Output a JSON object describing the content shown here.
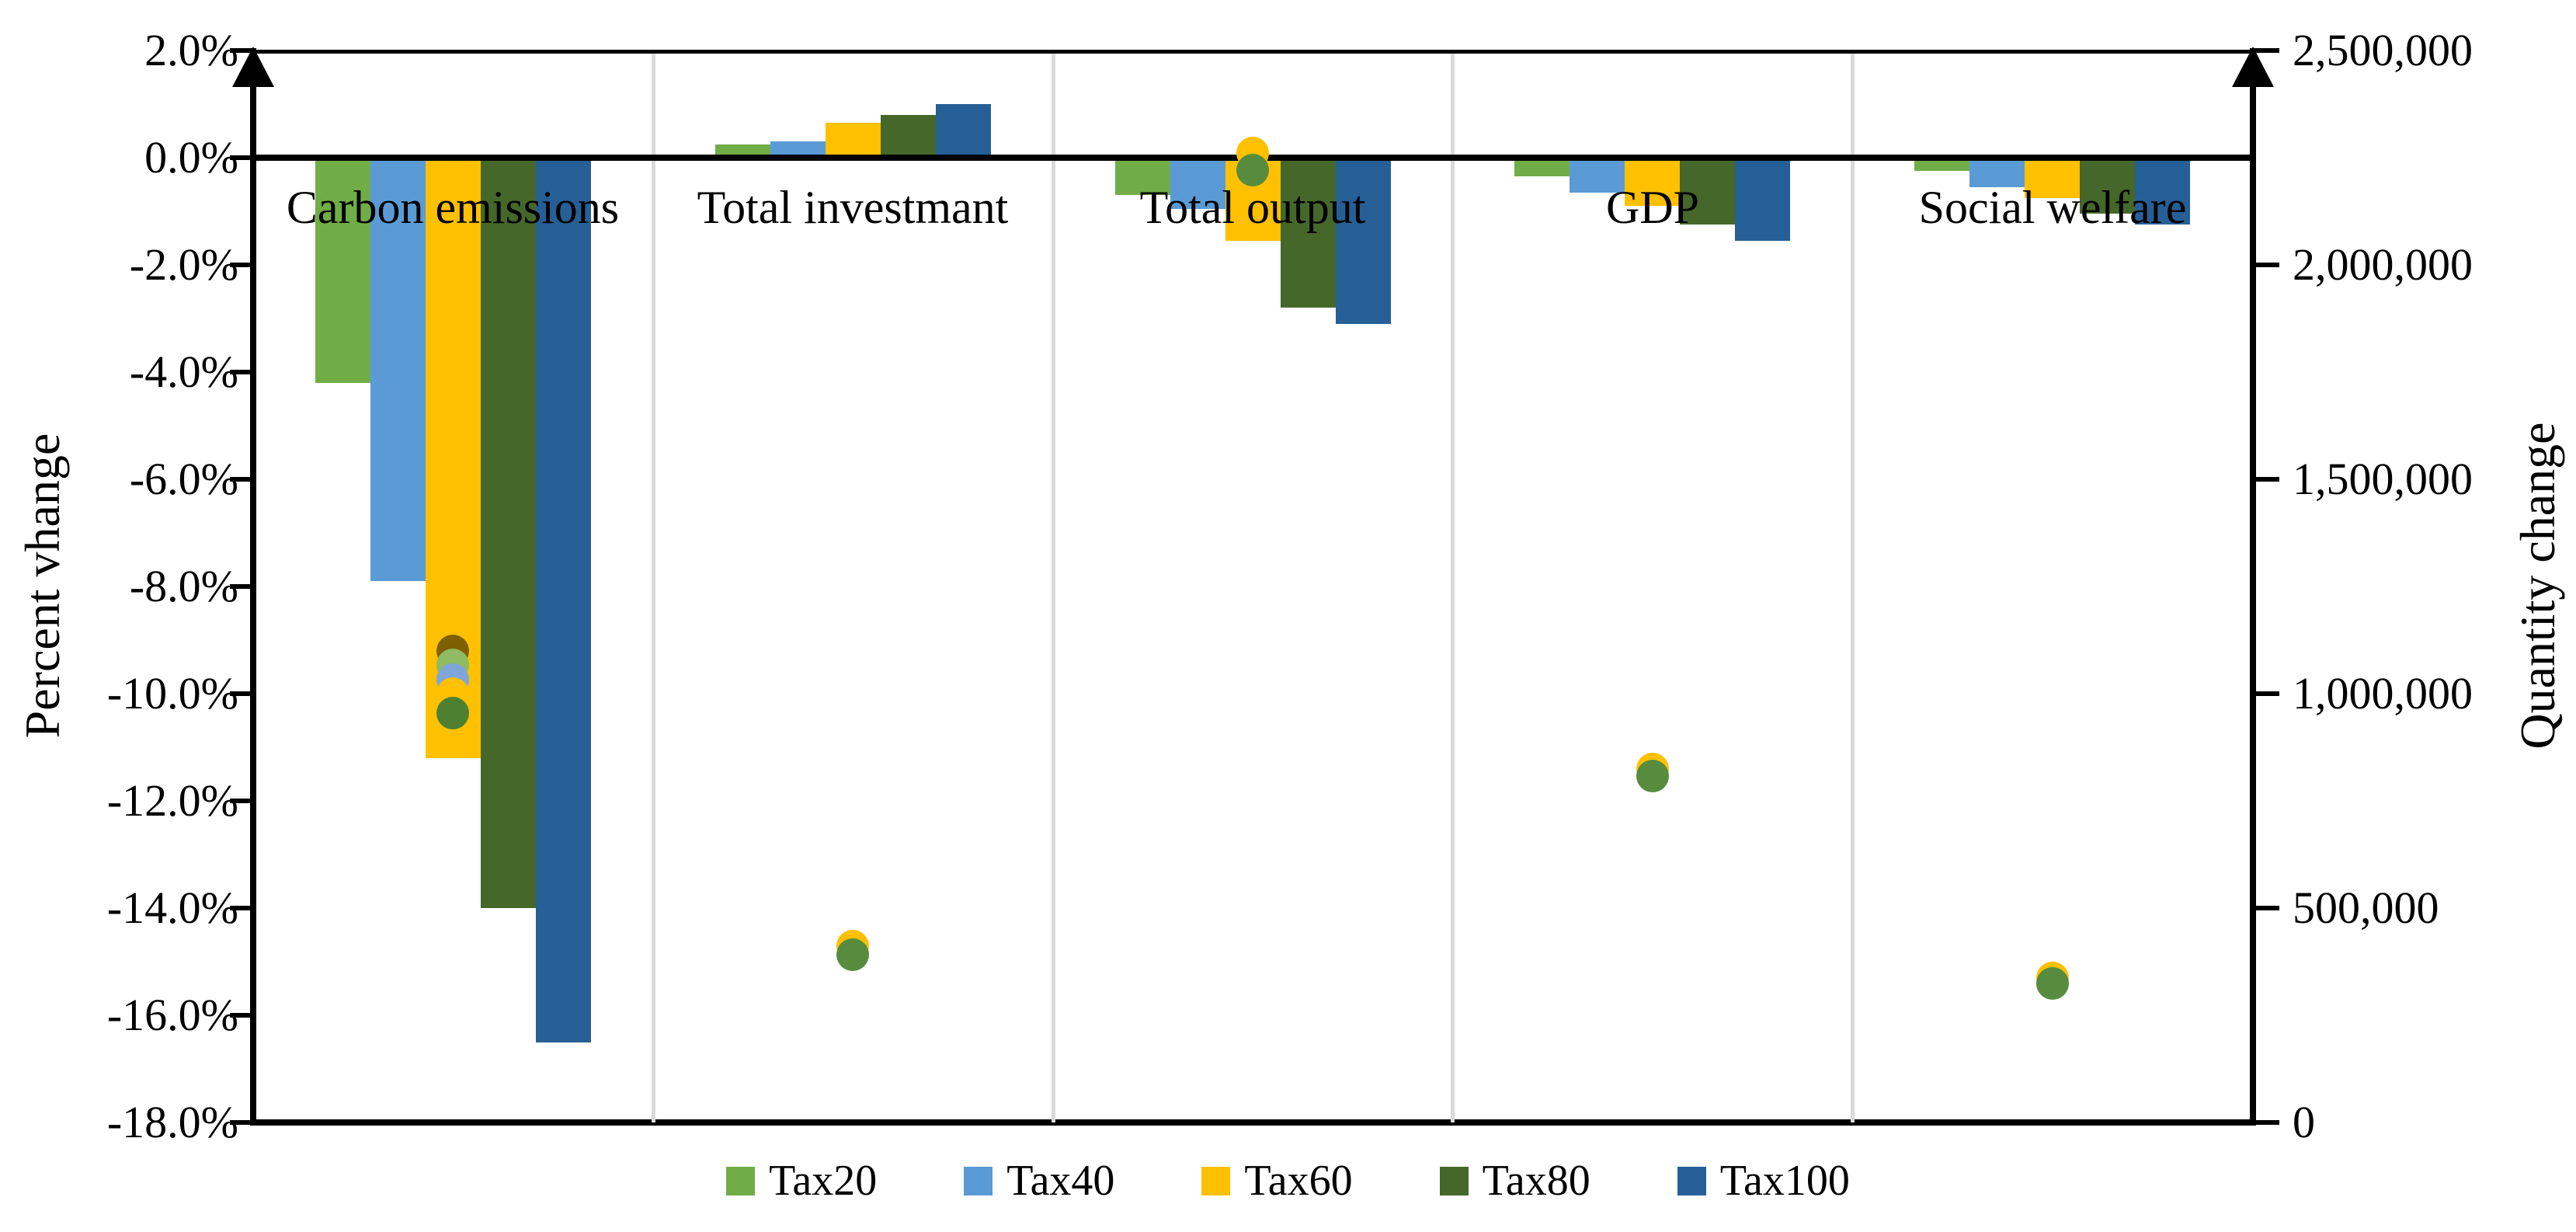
{
  "chart": {
    "left_axis_title": "Percent vhange",
    "right_axis_title": "Quantity change",
    "left_tick_labels": [
      "2.0%",
      "0.0%",
      "-2.0%",
      "-4.0%",
      "-6.0%",
      "-8.0%",
      "-10.0%",
      "-12.0%",
      "-14.0%",
      "-16.0%",
      "-18.0%"
    ],
    "right_tick_labels": [
      "2,500,000",
      "2,000,000",
      "1,500,000",
      "1,000,000",
      "500,000",
      "0"
    ]
  },
  "chart_data": {
    "type": "bar",
    "title": "",
    "categories": [
      "Carbon emissions",
      "Total investmant",
      "Total output",
      "GDP",
      "Social welfare"
    ],
    "series": [
      {
        "name": "Tax20",
        "color": "#70AD47",
        "values": [
          -4.2,
          0.25,
          -0.7,
          -0.35,
          -0.25
        ]
      },
      {
        "name": "Tax40",
        "color": "#5B9BD5",
        "values": [
          -7.9,
          0.3,
          -0.95,
          -0.65,
          -0.55
        ]
      },
      {
        "name": "Tax60",
        "color": "#FFC000",
        "values": [
          -11.2,
          0.65,
          -1.55,
          -0.9,
          -0.75
        ]
      },
      {
        "name": "Tax80",
        "color": "#45682A",
        "values": [
          -14.0,
          0.8,
          -2.8,
          -1.25,
          -1.05
        ]
      },
      {
        "name": "Tax100",
        "color": "#265F96",
        "values": [
          -16.5,
          1.0,
          -3.1,
          -1.55,
          -1.25
        ]
      }
    ],
    "left_axis": {
      "label": "Percent vhange",
      "min": -18,
      "max": 2,
      "tick_step_percent": 2
    },
    "right_axis": {
      "label": "Quantity change",
      "min": 0,
      "max": 2500000,
      "tick_step": 500000
    },
    "quantity_points": [
      {
        "category": "Carbon emissions",
        "points": [
          {
            "color": "#7F6000",
            "quantity": 1100000
          },
          {
            "color": "#8EBB63",
            "quantity": 1067000
          },
          {
            "color": "#7EA6D9",
            "quantity": 1033000
          },
          {
            "color": "#FFC000",
            "quantity": 1000000
          },
          {
            "color": "#4E8031",
            "quantity": 954000
          }
        ]
      },
      {
        "category": "Total investmant",
        "points": [
          {
            "color": "#FFC000",
            "quantity": 411000
          },
          {
            "color": "#578C3E",
            "quantity": 392000
          }
        ]
      },
      {
        "category": "Total output",
        "points": [
          {
            "color": "#FFC000",
            "quantity": 2260000
          },
          {
            "color": "#578C3E",
            "quantity": 2221000
          }
        ]
      },
      {
        "category": "GDP",
        "points": [
          {
            "color": "#FFC000",
            "quantity": 825000
          },
          {
            "color": "#578C3E",
            "quantity": 808000
          }
        ]
      },
      {
        "category": "Social welfare",
        "points": [
          {
            "color": "#FFC000",
            "quantity": 337000
          },
          {
            "color": "#578C3E",
            "quantity": 324000
          }
        ]
      }
    ],
    "grid": false,
    "legend_position": "bottom",
    "separator_color": "#D9D9D9"
  }
}
